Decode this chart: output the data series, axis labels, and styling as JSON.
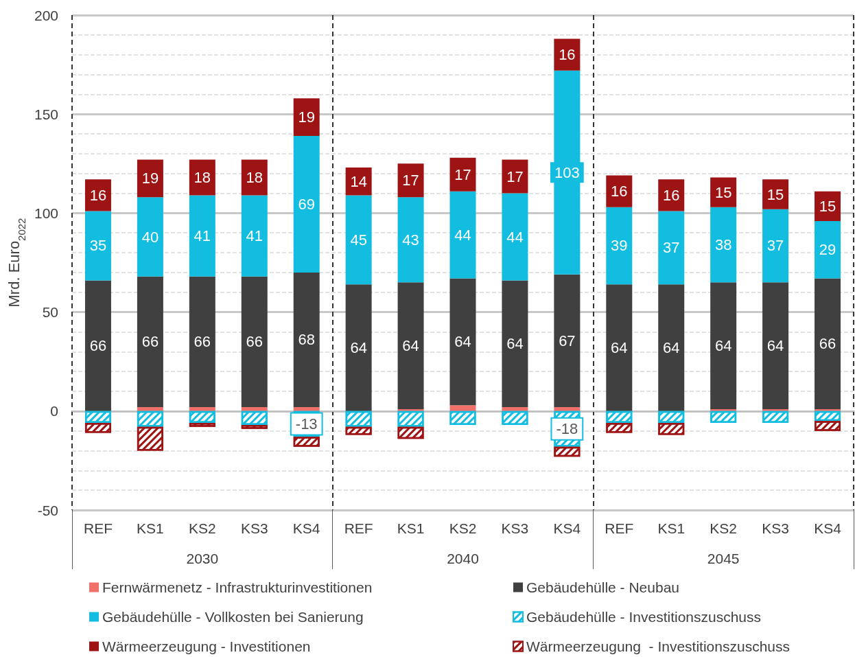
{
  "chart_data": {
    "type": "bar",
    "stacked": true,
    "ylabel": "Mrd. Euro$_{2022}$",
    "categories": [
      "REF",
      "KS1",
      "KS2",
      "KS3",
      "KS4",
      "REF",
      "KS1",
      "KS2",
      "KS3",
      "KS4",
      "REF",
      "KS1",
      "KS2",
      "KS3",
      "KS4"
    ],
    "annotations": [
      "2030",
      "2040",
      "2045"
    ],
    "series": [
      {
        "name": "Fernwärmenetz - Infrastrukturinvestitionen",
        "color": "#f0706a",
        "values": [
          0,
          2,
          2,
          2,
          2,
          0,
          1,
          3,
          2,
          2,
          0,
          0,
          1,
          1,
          1
        ]
      },
      {
        "name": "Gebäudehülle - Neubau",
        "color": "#404040",
        "values": [
          66,
          66,
          66,
          66,
          68,
          64,
          64,
          64,
          64,
          67,
          64,
          64,
          64,
          64,
          66
        ],
        "value_labels": [
          "66",
          "66",
          "66",
          "66",
          "68",
          "64",
          "64",
          "64",
          "64",
          "67",
          "64",
          "64",
          "64",
          "64",
          "66"
        ]
      },
      {
        "name": "Gebäudehülle - Vollkosten bei Sanierung",
        "color": "#12bde0",
        "values": [
          35,
          40,
          41,
          41,
          69,
          45,
          43,
          44,
          44,
          103,
          39,
          37,
          38,
          37,
          29
        ],
        "value_labels": [
          "35",
          "40",
          "41",
          "41",
          "69",
          "45",
          "43",
          "44",
          "44",
          "103",
          "39",
          "37",
          "38",
          "37",
          "29"
        ]
      },
      {
        "name": "Gebäudehülle - Investitionszuschuss",
        "color": "#12bde0",
        "values": [
          -6,
          -8,
          -6,
          -7,
          -13,
          -8,
          -8,
          -7,
          -7,
          -18,
          -6,
          -6,
          -6,
          -6,
          -5
        ],
        "value_labels": [
          null,
          null,
          null,
          null,
          "-13",
          null,
          null,
          null,
          null,
          "-18",
          null,
          null,
          null,
          null,
          null
        ]
      },
      {
        "name": "Wärmeerzeugung - Investitionen",
        "color": "#9e1414",
        "values": [
          16,
          19,
          18,
          18,
          19,
          14,
          17,
          17,
          17,
          16,
          16,
          16,
          15,
          15,
          15
        ],
        "value_labels": [
          "16",
          "19",
          "18",
          "18",
          "19",
          "14",
          "17",
          "17",
          "17",
          "16",
          "16",
          "16",
          "15",
          "15",
          "15"
        ]
      },
      {
        "name": "Wärmeerzeugung  - Investitionszuschuss",
        "color": "#9e1414",
        "values": [
          -5,
          -12,
          -2,
          -2,
          -5,
          -4,
          -6,
          null,
          null,
          -5,
          -5,
          -6,
          null,
          null,
          -5
        ]
      }
    ],
    "ylim": [
      -50,
      200
    ],
    "yticks": [
      -50,
      0,
      50,
      100,
      150,
      200
    ],
    "grid": true,
    "legend": "bottom"
  }
}
